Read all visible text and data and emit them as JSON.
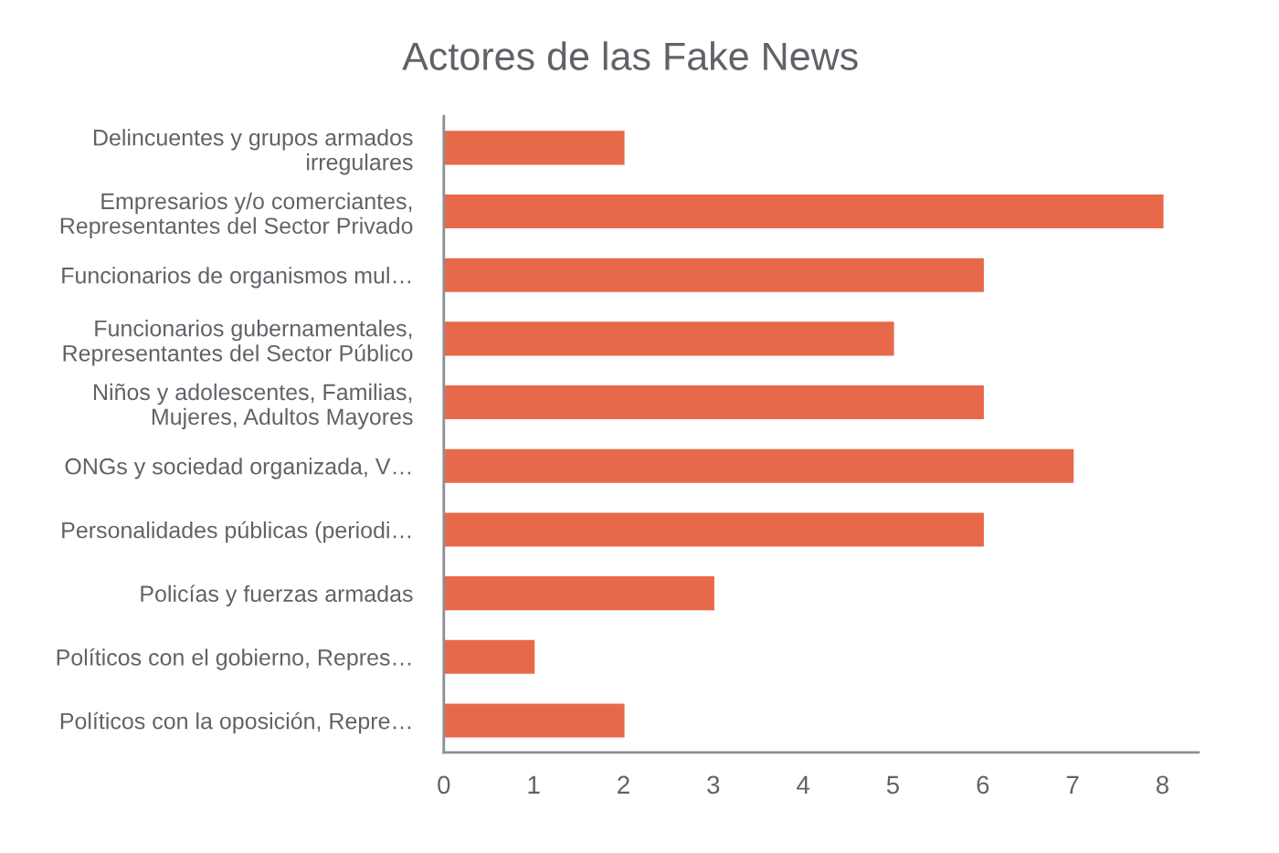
{
  "chart_data": {
    "type": "bar",
    "orientation": "horizontal",
    "title": "Actores de las Fake News",
    "categories": [
      "Delincuentes y grupos armados\nirregulares",
      "Empresarios y/o comerciantes,\nRepresentantes del Sector Privado",
      "Funcionarios de organismos mul…",
      "Funcionarios gubernamentales,\nRepresentantes del Sector Público",
      "Niños y adolescentes, Familias,\nMujeres, Adultos Mayores",
      "ONGs y sociedad organizada, V…",
      "Personalidades públicas (periodi…",
      "Policías y fuerzas armadas",
      "Políticos con el gobierno, Repres…",
      "Políticos con la oposición, Repre…"
    ],
    "values": [
      2,
      8,
      6,
      5,
      6,
      7,
      6,
      3,
      1,
      2
    ],
    "color": "#e8694a",
    "xlim": [
      0,
      8.4
    ],
    "xticks": [
      0,
      1,
      2,
      3,
      4,
      5,
      6,
      7,
      8
    ]
  }
}
